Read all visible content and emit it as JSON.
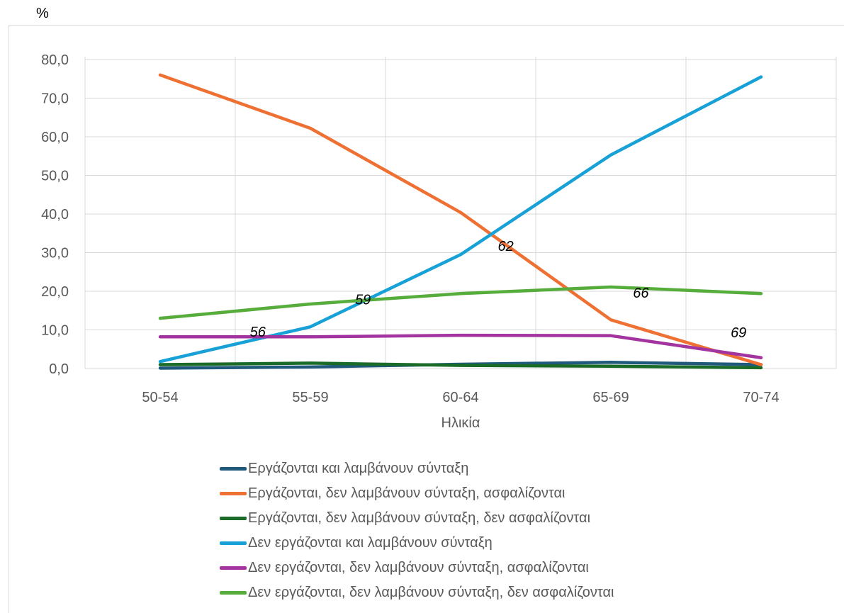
{
  "chart_data": {
    "type": "line",
    "unit_label": "%",
    "xlabel": "Ηλικία",
    "ylabel": "",
    "categories": [
      "50-54",
      "55-59",
      "60-64",
      "65-69",
      "70-74"
    ],
    "y_ticks": [
      "0,0",
      "10,0",
      "20,0",
      "30,0",
      "40,0",
      "50,0",
      "60,0",
      "70,0",
      "80,0"
    ],
    "ylim": [
      0,
      80
    ],
    "grid": true,
    "legend_position": "bottom",
    "series": [
      {
        "name": "Εργάζονται και λαμβάνουν σύνταξη",
        "color": "#1f5a7d",
        "values": [
          0.1,
          0.4,
          1.1,
          1.6,
          1.0
        ]
      },
      {
        "name": "Εργάζονται, δεν λαμβάνουν σύνταξη, ασφαλίζονται",
        "color": "#ef7033",
        "values": [
          76.0,
          62.2,
          40.4,
          12.6,
          1.0
        ]
      },
      {
        "name": "Εργάζονται, δεν λαμβάνουν σύνταξη, δεν ασφαλίζονται",
        "color": "#1a6b27",
        "values": [
          1.0,
          1.4,
          0.8,
          0.6,
          0.2
        ]
      },
      {
        "name": "Δεν εργάζονται και λαμβάνουν σύνταξη",
        "color": "#18a1d6",
        "values": [
          1.8,
          10.8,
          29.5,
          55.3,
          75.5
        ]
      },
      {
        "name": "Δεν εργάζονται, δεν λαμβάνουν σύνταξη, ασφαλίζονται",
        "color": "#a3339f",
        "values": [
          8.2,
          8.2,
          8.6,
          8.5,
          2.8
        ]
      },
      {
        "name": "Δεν εργάζονται, δεν λαμβάνουν σύνταξη, δεν ασφαλίζονται",
        "color": "#56ad3c",
        "values": [
          13.0,
          16.7,
          19.4,
          21.1,
          19.4
        ]
      }
    ],
    "annotations": [
      {
        "text": "56",
        "x": 0.65,
        "y": 9.5
      },
      {
        "text": "59",
        "x": 1.35,
        "y": 17.9
      },
      {
        "text": "62",
        "x": 2.3,
        "y": 31.7
      },
      {
        "text": "66",
        "x": 3.2,
        "y": 19.6
      },
      {
        "text": "69",
        "x": 3.85,
        "y": 9.4
      }
    ]
  }
}
